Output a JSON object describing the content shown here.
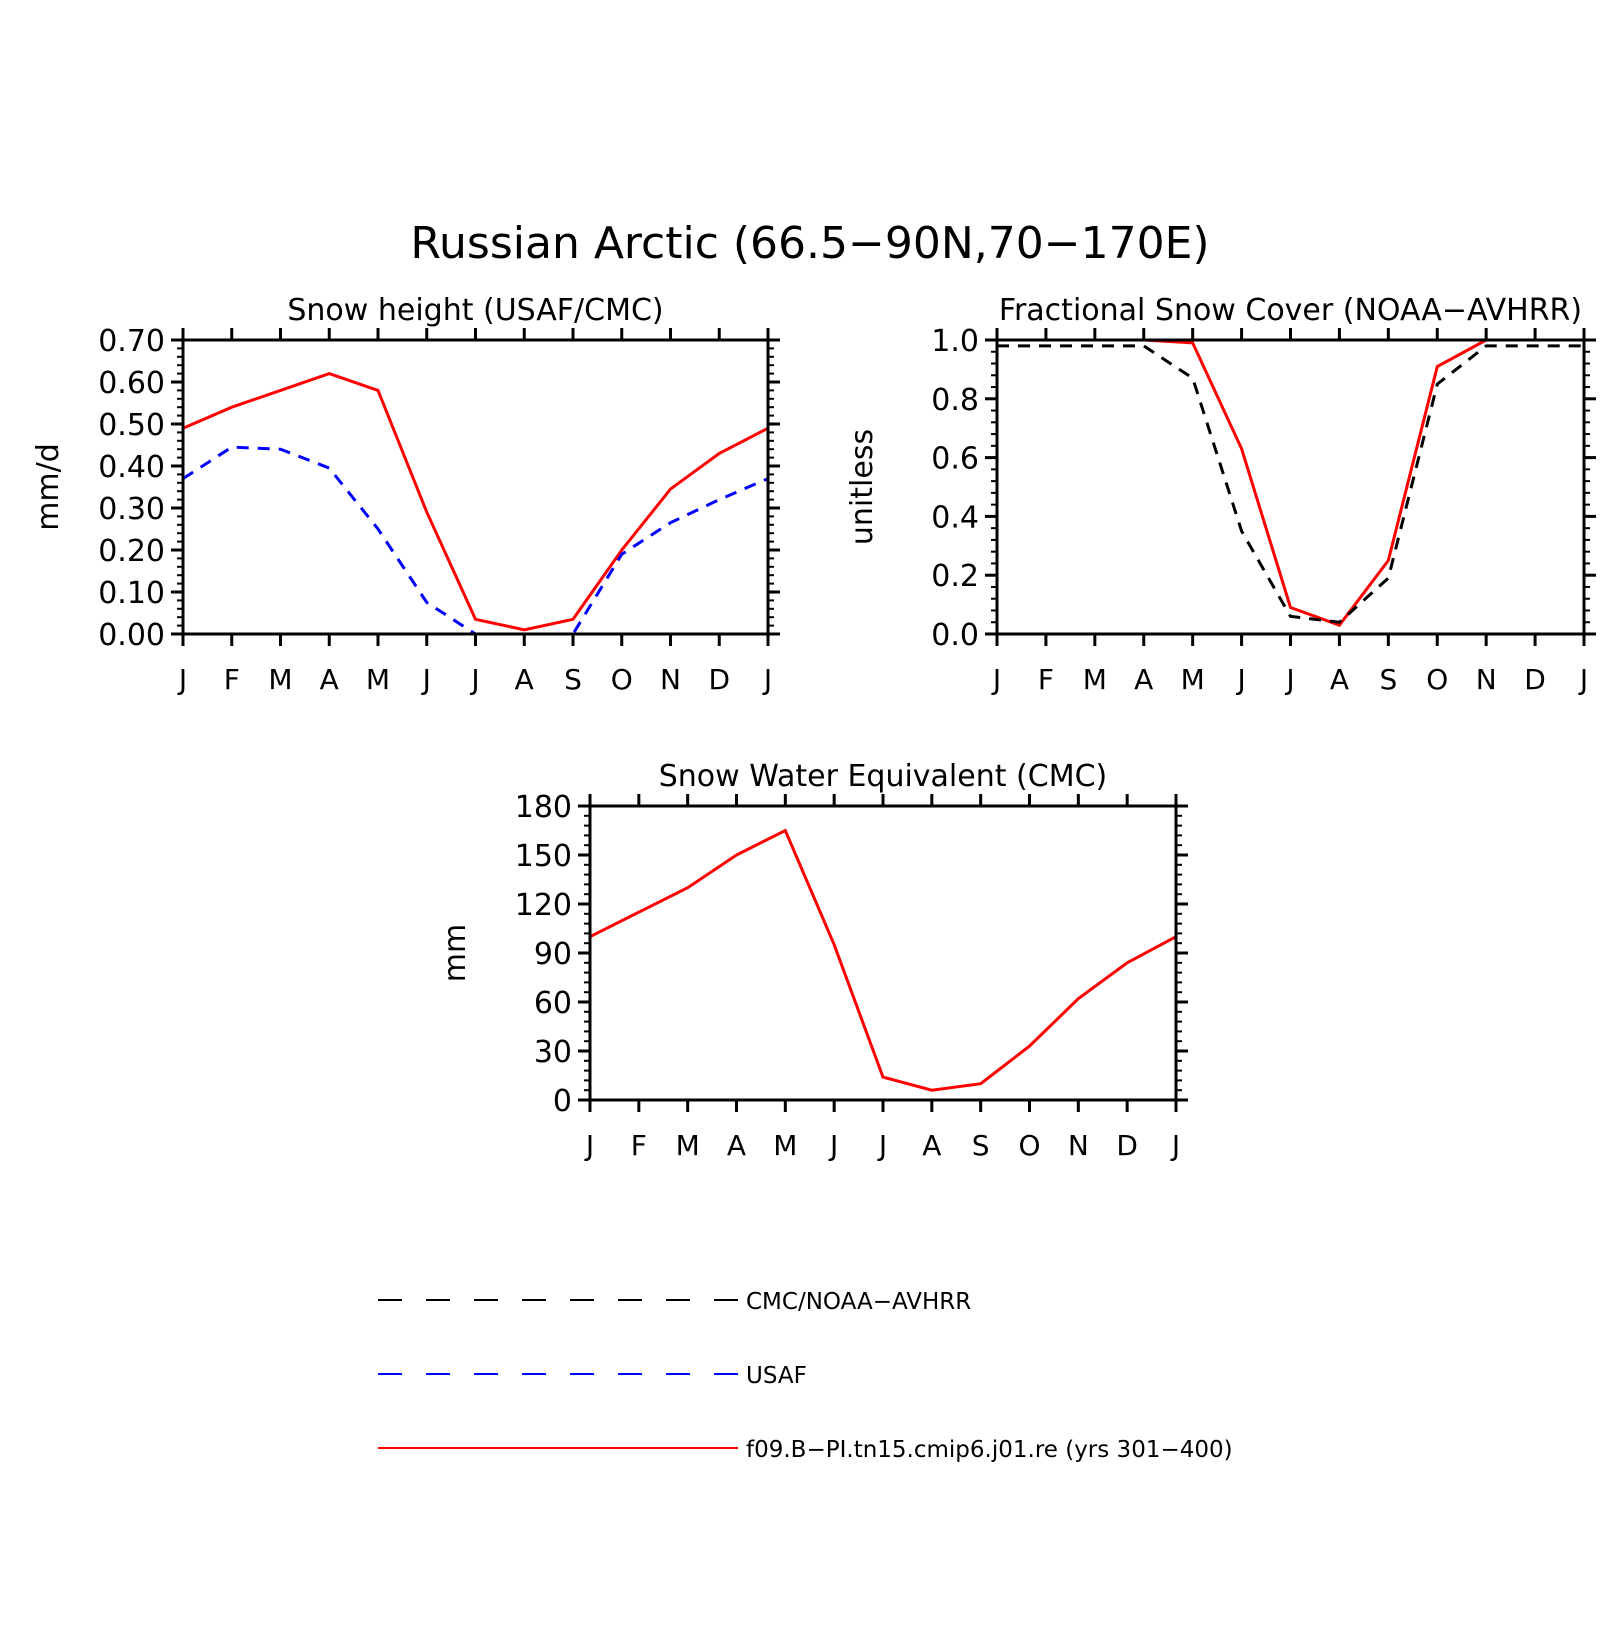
{
  "figure_title": "Russian Arctic (66.5−90N,70−170E)",
  "months": [
    "J",
    "F",
    "M",
    "A",
    "M",
    "J",
    "J",
    "A",
    "S",
    "O",
    "N",
    "D",
    "J"
  ],
  "colors": {
    "model": "#ff0000",
    "usaf": "#0000ff",
    "obs": "#000000",
    "axes": "#000000"
  },
  "chart_data": [
    {
      "type": "line",
      "title": "Snow height (USAF/CMC)",
      "ylabel": "mm/d",
      "xlabel": "",
      "categories": [
        "J",
        "F",
        "M",
        "A",
        "M",
        "J",
        "J",
        "A",
        "S",
        "O",
        "N",
        "D",
        "J"
      ],
      "ylim": [
        0,
        0.7
      ],
      "yticks": [
        "0.00",
        "0.10",
        "0.20",
        "0.30",
        "0.40",
        "0.50",
        "0.60",
        "0.70"
      ],
      "series": [
        {
          "name": "f09.B−PI.tn15.cmip6.j01.re (yrs 301−400)",
          "style": "solid",
          "color": "#ff0000",
          "values": [
            0.49,
            0.54,
            0.58,
            0.62,
            0.58,
            0.29,
            0.035,
            0.01,
            0.035,
            0.2,
            0.345,
            0.43,
            0.49
          ]
        },
        {
          "name": "USAF",
          "style": "dashed",
          "color": "#0000ff",
          "values": [
            0.37,
            0.445,
            0.44,
            0.395,
            0.25,
            0.075,
            0.0,
            0.0,
            0.0,
            0.19,
            0.265,
            0.32,
            0.37
          ]
        },
        {
          "name": "CMC/NOAA−AVHRR",
          "style": "dashed",
          "color": "#000000",
          "values": [
            0,
            0,
            0,
            0,
            0,
            0,
            0,
            0,
            0,
            0,
            0,
            0,
            0
          ]
        }
      ]
    },
    {
      "type": "line",
      "title": "Fractional Snow Cover (NOAA−AVHRR)",
      "ylabel": "unitless",
      "xlabel": "",
      "categories": [
        "J",
        "F",
        "M",
        "A",
        "M",
        "J",
        "J",
        "A",
        "S",
        "O",
        "N",
        "D",
        "J"
      ],
      "ylim": [
        0,
        1.0
      ],
      "yticks": [
        "0.0",
        "0.2",
        "0.4",
        "0.6",
        "0.8",
        "1.0"
      ],
      "series": [
        {
          "name": "f09.B−PI.tn15.cmip6.j01.re (yrs 301−400)",
          "style": "solid",
          "color": "#ff0000",
          "values": [
            1.0,
            1.0,
            1.0,
            1.0,
            0.99,
            0.63,
            0.09,
            0.03,
            0.25,
            0.91,
            1.0,
            1.0,
            1.0
          ]
        },
        {
          "name": "CMC/NOAA−AVHRR",
          "style": "dashed",
          "color": "#000000",
          "values": [
            0.98,
            0.98,
            0.98,
            0.98,
            0.87,
            0.35,
            0.06,
            0.04,
            0.19,
            0.85,
            0.98,
            0.98,
            0.98
          ]
        }
      ]
    },
    {
      "type": "line",
      "title": "Snow Water Equivalent (CMC)",
      "ylabel": "mm",
      "xlabel": "",
      "categories": [
        "J",
        "F",
        "M",
        "A",
        "M",
        "J",
        "J",
        "A",
        "S",
        "O",
        "N",
        "D",
        "J"
      ],
      "ylim": [
        0,
        180
      ],
      "yticks": [
        "0",
        "30",
        "60",
        "90",
        "120",
        "150",
        "180"
      ],
      "series": [
        {
          "name": "f09.B−PI.tn15.cmip6.j01.re (yrs 301−400)",
          "style": "solid",
          "color": "#ff0000",
          "values": [
            100,
            115,
            130,
            150,
            165,
            95,
            14,
            6,
            10,
            33,
            62,
            84,
            100
          ]
        },
        {
          "name": "CMC/NOAA−AVHRR",
          "style": "dashed",
          "color": "#000000",
          "values": [
            0,
            0,
            0,
            0,
            0,
            0,
            0,
            0,
            0,
            0,
            0,
            0,
            0
          ]
        }
      ]
    }
  ],
  "legend": [
    {
      "label": "CMC/NOAA−AVHRR",
      "style": "dashed",
      "color": "#000000"
    },
    {
      "label": "USAF",
      "style": "dashed",
      "color": "#0000ff"
    },
    {
      "label": "f09.B−PI.tn15.cmip6.j01.re (yrs 301−400)",
      "style": "solid",
      "color": "#ff0000"
    }
  ]
}
